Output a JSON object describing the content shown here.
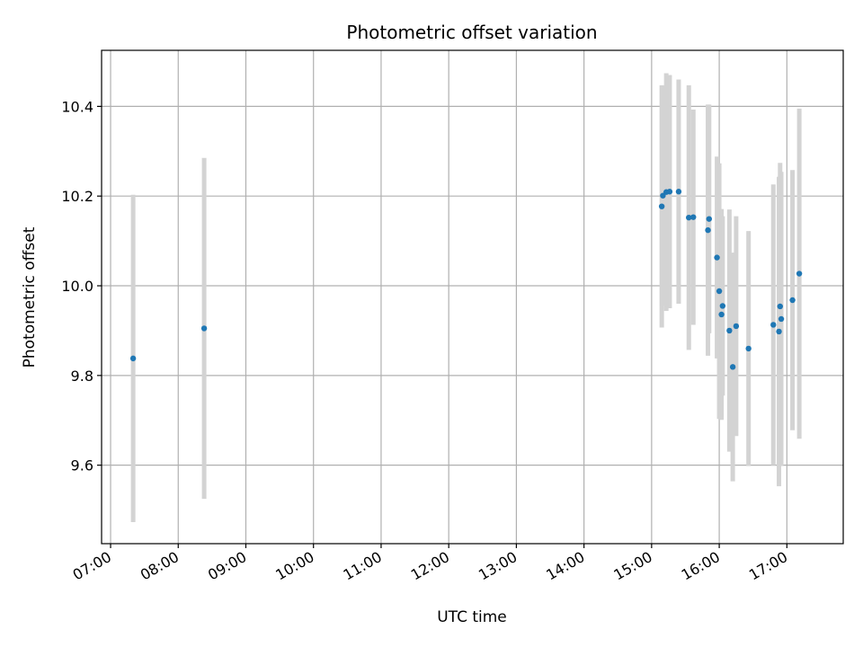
{
  "chart_data": {
    "type": "scatter",
    "title": "Photometric offset variation",
    "xlabel": "UTC time",
    "ylabel": "Photometric offset",
    "x_ticks": [
      "07:00",
      "08:00",
      "09:00",
      "10:00",
      "11:00",
      "12:00",
      "13:00",
      "14:00",
      "15:00",
      "16:00",
      "17:00"
    ],
    "y_ticks": [
      "9.6",
      "9.8",
      "10.0",
      "10.2",
      "10.4"
    ],
    "xlim": [
      "06:52",
      "17:50"
    ],
    "ylim": [
      9.425,
      10.525
    ],
    "grid": true,
    "colors": {
      "point": "#1f77b4",
      "errorbar": "#d3d3d3",
      "grid": "#b0b0b0"
    },
    "points": [
      {
        "t": "07:20",
        "y": 9.838,
        "err": 0.365
      },
      {
        "t": "08:23",
        "y": 9.905,
        "err": 0.38
      },
      {
        "t": "15:09",
        "y": 10.177,
        "err": 0.27
      },
      {
        "t": "15:10",
        "y": 10.201,
        "err": 0.245
      },
      {
        "t": "15:13",
        "y": 10.209,
        "err": 0.265
      },
      {
        "t": "15:16",
        "y": 10.21,
        "err": 0.26
      },
      {
        "t": "15:24",
        "y": 10.21,
        "err": 0.25
      },
      {
        "t": "15:33",
        "y": 10.152,
        "err": 0.295
      },
      {
        "t": "15:37",
        "y": 10.153,
        "err": 0.24
      },
      {
        "t": "15:50",
        "y": 10.124,
        "err": 0.28
      },
      {
        "t": "15:51",
        "y": 10.149,
        "err": 0.255
      },
      {
        "t": "15:58",
        "y": 10.063,
        "err": 0.225
      },
      {
        "t": "16:00",
        "y": 9.988,
        "err": 0.285
      },
      {
        "t": "16:02",
        "y": 9.936,
        "err": 0.235
      },
      {
        "t": "16:03",
        "y": 9.955,
        "err": 0.2
      },
      {
        "t": "16:09",
        "y": 9.9,
        "err": 0.27
      },
      {
        "t": "16:12",
        "y": 9.819,
        "err": 0.255
      },
      {
        "t": "16:15",
        "y": 9.91,
        "err": 0.245
      },
      {
        "t": "16:26",
        "y": 9.86,
        "err": 0.262
      },
      {
        "t": "16:48",
        "y": 9.913,
        "err": 0.313
      },
      {
        "t": "16:53",
        "y": 9.898,
        "err": 0.345
      },
      {
        "t": "16:54",
        "y": 9.954,
        "err": 0.32
      },
      {
        "t": "16:55",
        "y": 9.926,
        "err": 0.328
      },
      {
        "t": "17:05",
        "y": 9.968,
        "err": 0.29
      },
      {
        "t": "17:11",
        "y": 10.027,
        "err": 0.368
      }
    ]
  }
}
